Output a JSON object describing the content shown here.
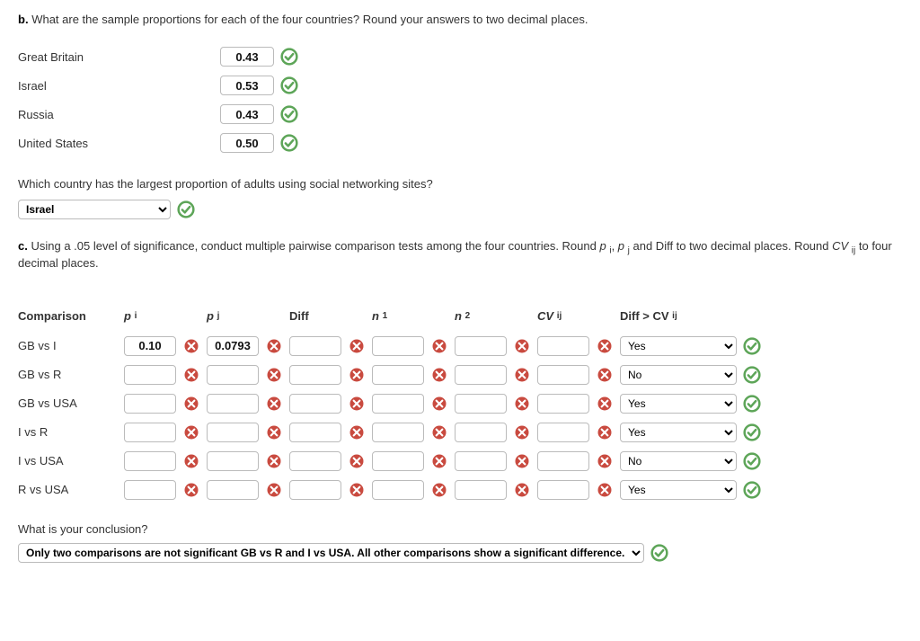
{
  "partB": {
    "label": "b.",
    "question": "What are the sample proportions for each of the four countries? Round your answers to two decimal places.",
    "rows": [
      {
        "country": "Great Britain",
        "value": "0.43",
        "status": "correct"
      },
      {
        "country": "Israel",
        "value": "0.53",
        "status": "correct"
      },
      {
        "country": "Russia",
        "value": "0.43",
        "status": "correct"
      },
      {
        "country": "United States",
        "value": "0.50",
        "status": "correct"
      }
    ],
    "followup": "Which country has the largest proportion of adults using social networking sites?",
    "followup_answer": "Israel",
    "followup_status": "correct"
  },
  "partC": {
    "label": "c.",
    "question_html": "Using a .05 level of significance, conduct multiple pairwise comparison tests among the four countries. Round p i, p j and Diff to two decimal places. Round CV ij to four decimal places.",
    "headers": {
      "comparison": "Comparison",
      "pi": "p",
      "pi_sub": "i",
      "pj": "p",
      "pj_sub": "j",
      "diff": "Diff",
      "n1": "n",
      "n1_sub": "1",
      "n2": "n",
      "n2_sub": "2",
      "cv": "CV",
      "cv_sub": "ij",
      "last": "Diff > CV",
      "last_sub": "ij"
    },
    "rows": [
      {
        "comp": "GB vs I",
        "pi": "0.10",
        "pj": "0.0793",
        "diff": "",
        "n1": "",
        "n2": "",
        "cv": "",
        "ans": "Yes",
        "cells_status": "wrong",
        "ans_status": "correct"
      },
      {
        "comp": "GB vs R",
        "pi": "",
        "pj": "",
        "diff": "",
        "n1": "",
        "n2": "",
        "cv": "",
        "ans": "No",
        "cells_status": "wrong",
        "ans_status": "correct"
      },
      {
        "comp": "GB vs USA",
        "pi": "",
        "pj": "",
        "diff": "",
        "n1": "",
        "n2": "",
        "cv": "",
        "ans": "Yes",
        "cells_status": "wrong",
        "ans_status": "correct"
      },
      {
        "comp": "I vs R",
        "pi": "",
        "pj": "",
        "diff": "",
        "n1": "",
        "n2": "",
        "cv": "",
        "ans": "Yes",
        "cells_status": "wrong",
        "ans_status": "correct"
      },
      {
        "comp": "I vs USA",
        "pi": "",
        "pj": "",
        "diff": "",
        "n1": "",
        "n2": "",
        "cv": "",
        "ans": "No",
        "cells_status": "wrong",
        "ans_status": "correct"
      },
      {
        "comp": "R vs USA",
        "pi": "",
        "pj": "",
        "diff": "",
        "n1": "",
        "n2": "",
        "cv": "",
        "ans": "Yes",
        "cells_status": "wrong",
        "ans_status": "correct"
      }
    ],
    "conclusion_q": "What is your conclusion?",
    "conclusion_ans": "Only two comparisons are not significant GB vs R and I vs USA. All other comparisons show a significant difference.",
    "conclusion_status": "correct"
  },
  "icons": {
    "correct_color_outer": "#5da558",
    "correct_color_inner": "#ffffff",
    "wrong_color_fill": "#c94a3f",
    "wrong_color_x": "#ffffff"
  }
}
